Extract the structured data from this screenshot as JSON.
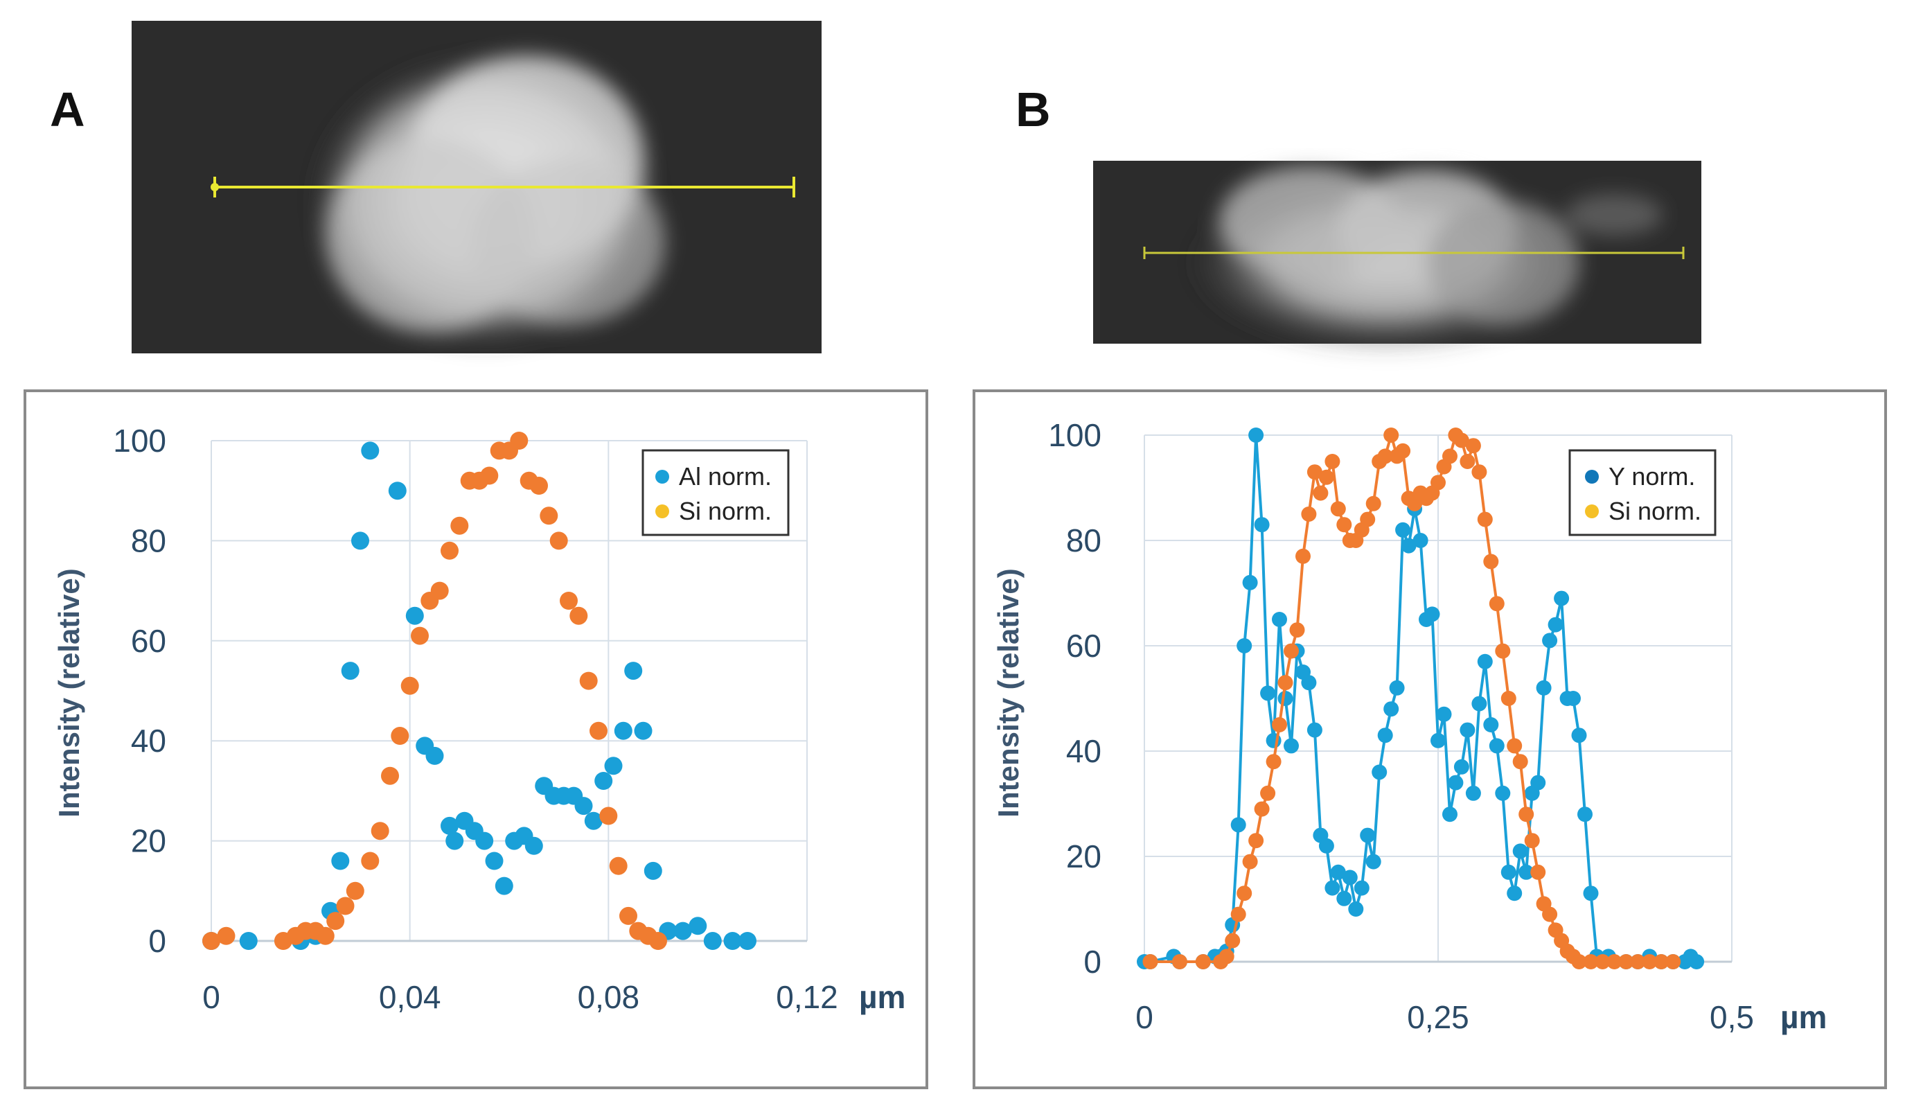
{
  "panels": [
    {
      "letter": "A",
      "chart": {
        "type": "scatter",
        "xlabel": "",
        "ylabel": "Intensity (relative)",
        "unit": "µm",
        "xlim": [
          0,
          0.12
        ],
        "ylim": [
          0,
          100
        ],
        "xticks": [
          0,
          0.04,
          0.08,
          0.12
        ],
        "xtick_labels": [
          "0",
          "0,04",
          "0,08",
          "0,12"
        ],
        "yticks": [
          0,
          20,
          40,
          60,
          80,
          100
        ],
        "ytick_labels": [
          "0",
          "20",
          "40",
          "60",
          "80",
          "100"
        ],
        "grid": true,
        "legend_position": "top-right",
        "series": [
          {
            "name": "Al norm.",
            "color": "#1aa0d8",
            "line": false,
            "points": [
              [
                0.0,
                0
              ],
              [
                0.0075,
                0
              ],
              [
                0.018,
                0
              ],
              [
                0.021,
                1
              ],
              [
                0.024,
                6
              ],
              [
                0.026,
                16
              ],
              [
                0.028,
                54
              ],
              [
                0.03,
                80
              ],
              [
                0.032,
                98
              ],
              [
                0.0375,
                90
              ],
              [
                0.041,
                65
              ],
              [
                0.043,
                39
              ],
              [
                0.045,
                37
              ],
              [
                0.048,
                23
              ],
              [
                0.049,
                20
              ],
              [
                0.051,
                24
              ],
              [
                0.053,
                22
              ],
              [
                0.055,
                20
              ],
              [
                0.057,
                16
              ],
              [
                0.059,
                11
              ],
              [
                0.061,
                20
              ],
              [
                0.063,
                21
              ],
              [
                0.065,
                19
              ],
              [
                0.067,
                31
              ],
              [
                0.069,
                29
              ],
              [
                0.071,
                29
              ],
              [
                0.073,
                29
              ],
              [
                0.075,
                27
              ],
              [
                0.077,
                24
              ],
              [
                0.079,
                32
              ],
              [
                0.081,
                35
              ],
              [
                0.083,
                42
              ],
              [
                0.085,
                54
              ],
              [
                0.087,
                42
              ],
              [
                0.089,
                14
              ],
              [
                0.092,
                2
              ],
              [
                0.095,
                2
              ],
              [
                0.098,
                3
              ],
              [
                0.101,
                0
              ],
              [
                0.105,
                0
              ],
              [
                0.108,
                0
              ]
            ]
          },
          {
            "name": "Si norm.",
            "color": "#f07c30",
            "line": false,
            "points": [
              [
                0.0,
                0
              ],
              [
                0.003,
                1
              ],
              [
                0.0145,
                0
              ],
              [
                0.017,
                1
              ],
              [
                0.019,
                2
              ],
              [
                0.021,
                2
              ],
              [
                0.023,
                1
              ],
              [
                0.025,
                4
              ],
              [
                0.027,
                7
              ],
              [
                0.029,
                10
              ],
              [
                0.032,
                16
              ],
              [
                0.034,
                22
              ],
              [
                0.036,
                33
              ],
              [
                0.038,
                41
              ],
              [
                0.04,
                51
              ],
              [
                0.042,
                61
              ],
              [
                0.044,
                68
              ],
              [
                0.046,
                70
              ],
              [
                0.048,
                78
              ],
              [
                0.05,
                83
              ],
              [
                0.052,
                92
              ],
              [
                0.054,
                92
              ],
              [
                0.056,
                93
              ],
              [
                0.058,
                98
              ],
              [
                0.06,
                98
              ],
              [
                0.062,
                100
              ],
              [
                0.064,
                92
              ],
              [
                0.066,
                91
              ],
              [
                0.068,
                85
              ],
              [
                0.07,
                80
              ],
              [
                0.072,
                68
              ],
              [
                0.074,
                65
              ],
              [
                0.076,
                52
              ],
              [
                0.078,
                42
              ],
              [
                0.08,
                25
              ],
              [
                0.082,
                15
              ],
              [
                0.084,
                5
              ],
              [
                0.086,
                2
              ],
              [
                0.088,
                1
              ],
              [
                0.09,
                0
              ]
            ]
          }
        ]
      }
    },
    {
      "letter": "B",
      "chart": {
        "type": "line",
        "xlabel": "",
        "ylabel": "Intensity (relative)",
        "unit": "µm",
        "xlim": [
          0,
          0.5
        ],
        "ylim": [
          0,
          100
        ],
        "xticks": [
          0,
          0.25,
          0.5
        ],
        "xtick_labels": [
          "0",
          "0,25",
          "0,5"
        ],
        "yticks": [
          0,
          20,
          40,
          60,
          80,
          100
        ],
        "ytick_labels": [
          "0",
          "20",
          "40",
          "60",
          "80",
          "100"
        ],
        "grid": true,
        "legend_position": "top-right",
        "series": [
          {
            "name": "Y norm.",
            "color": "#1aa0d8",
            "line": true,
            "points": [
              [
                0.0,
                0
              ],
              [
                0.005,
                0
              ],
              [
                0.025,
                1
              ],
              [
                0.03,
                0
              ],
              [
                0.05,
                0
              ],
              [
                0.06,
                1
              ],
              [
                0.065,
                1
              ],
              [
                0.07,
                2
              ],
              [
                0.075,
                7
              ],
              [
                0.08,
                26
              ],
              [
                0.085,
                60
              ],
              [
                0.09,
                72
              ],
              [
                0.095,
                100
              ],
              [
                0.1,
                83
              ],
              [
                0.105,
                51
              ],
              [
                0.11,
                42
              ],
              [
                0.115,
                65
              ],
              [
                0.12,
                50
              ],
              [
                0.125,
                41
              ],
              [
                0.13,
                59
              ],
              [
                0.135,
                55
              ],
              [
                0.14,
                53
              ],
              [
                0.145,
                44
              ],
              [
                0.15,
                24
              ],
              [
                0.155,
                22
              ],
              [
                0.16,
                14
              ],
              [
                0.165,
                17
              ],
              [
                0.17,
                12
              ],
              [
                0.175,
                16
              ],
              [
                0.18,
                10
              ],
              [
                0.185,
                14
              ],
              [
                0.19,
                24
              ],
              [
                0.195,
                19
              ],
              [
                0.2,
                36
              ],
              [
                0.205,
                43
              ],
              [
                0.21,
                48
              ],
              [
                0.215,
                52
              ],
              [
                0.22,
                82
              ],
              [
                0.225,
                79
              ],
              [
                0.23,
                86
              ],
              [
                0.235,
                80
              ],
              [
                0.24,
                65
              ],
              [
                0.245,
                66
              ],
              [
                0.25,
                42
              ],
              [
                0.255,
                47
              ],
              [
                0.26,
                28
              ],
              [
                0.265,
                34
              ],
              [
                0.27,
                37
              ],
              [
                0.275,
                44
              ],
              [
                0.28,
                32
              ],
              [
                0.285,
                49
              ],
              [
                0.29,
                57
              ],
              [
                0.295,
                45
              ],
              [
                0.3,
                41
              ],
              [
                0.305,
                32
              ],
              [
                0.31,
                17
              ],
              [
                0.315,
                13
              ],
              [
                0.32,
                21
              ],
              [
                0.325,
                17
              ],
              [
                0.33,
                32
              ],
              [
                0.335,
                34
              ],
              [
                0.34,
                52
              ],
              [
                0.345,
                61
              ],
              [
                0.35,
                64
              ],
              [
                0.355,
                69
              ],
              [
                0.36,
                50
              ],
              [
                0.365,
                50
              ],
              [
                0.37,
                43
              ],
              [
                0.375,
                28
              ],
              [
                0.38,
                13
              ],
              [
                0.385,
                1
              ],
              [
                0.395,
                1
              ],
              [
                0.41,
                0
              ],
              [
                0.42,
                0
              ],
              [
                0.43,
                1
              ],
              [
                0.44,
                0
              ],
              [
                0.45,
                0
              ],
              [
                0.46,
                0
              ],
              [
                0.465,
                1
              ],
              [
                0.47,
                0
              ]
            ]
          },
          {
            "name": "Si norm.",
            "color": "#f07c30",
            "line": true,
            "points": [
              [
                0.005,
                0
              ],
              [
                0.03,
                0
              ],
              [
                0.05,
                0
              ],
              [
                0.065,
                0
              ],
              [
                0.07,
                1
              ],
              [
                0.075,
                4
              ],
              [
                0.08,
                9
              ],
              [
                0.085,
                13
              ],
              [
                0.09,
                19
              ],
              [
                0.095,
                23
              ],
              [
                0.1,
                29
              ],
              [
                0.105,
                32
              ],
              [
                0.11,
                38
              ],
              [
                0.115,
                45
              ],
              [
                0.12,
                53
              ],
              [
                0.125,
                59
              ],
              [
                0.13,
                63
              ],
              [
                0.135,
                77
              ],
              [
                0.14,
                85
              ],
              [
                0.145,
                93
              ],
              [
                0.15,
                89
              ],
              [
                0.155,
                92
              ],
              [
                0.16,
                95
              ],
              [
                0.165,
                86
              ],
              [
                0.17,
                83
              ],
              [
                0.175,
                80
              ],
              [
                0.18,
                80
              ],
              [
                0.185,
                82
              ],
              [
                0.19,
                84
              ],
              [
                0.195,
                87
              ],
              [
                0.2,
                95
              ],
              [
                0.205,
                96
              ],
              [
                0.21,
                100
              ],
              [
                0.215,
                96
              ],
              [
                0.22,
                97
              ],
              [
                0.225,
                88
              ],
              [
                0.23,
                87
              ],
              [
                0.235,
                89
              ],
              [
                0.24,
                88
              ],
              [
                0.245,
                89
              ],
              [
                0.25,
                91
              ],
              [
                0.255,
                94
              ],
              [
                0.26,
                96
              ],
              [
                0.265,
                100
              ],
              [
                0.27,
                99
              ],
              [
                0.275,
                95
              ],
              [
                0.28,
                98
              ],
              [
                0.285,
                93
              ],
              [
                0.29,
                84
              ],
              [
                0.295,
                76
              ],
              [
                0.3,
                68
              ],
              [
                0.305,
                59
              ],
              [
                0.31,
                50
              ],
              [
                0.315,
                41
              ],
              [
                0.32,
                38
              ],
              [
                0.325,
                28
              ],
              [
                0.33,
                23
              ],
              [
                0.335,
                17
              ],
              [
                0.34,
                11
              ],
              [
                0.345,
                9
              ],
              [
                0.35,
                6
              ],
              [
                0.355,
                4
              ],
              [
                0.36,
                2
              ],
              [
                0.365,
                1
              ],
              [
                0.37,
                0
              ],
              [
                0.38,
                0
              ],
              [
                0.39,
                0
              ],
              [
                0.4,
                0
              ],
              [
                0.41,
                0
              ],
              [
                0.42,
                0
              ],
              [
                0.43,
                0
              ],
              [
                0.44,
                0
              ],
              [
                0.45,
                0
              ]
            ]
          }
        ]
      }
    }
  ]
}
